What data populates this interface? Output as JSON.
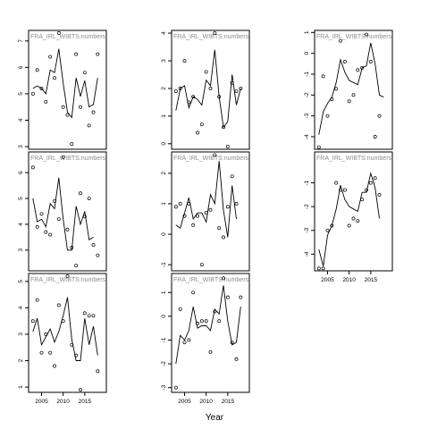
{
  "xlabel": "Year",
  "chart_data": [
    {
      "type": "line",
      "label": "FRA_IRL_WIBTS:numbers",
      "ylim": [
        2.9,
        7.4
      ],
      "yticks": [
        3,
        4,
        5,
        6,
        7
      ],
      "xlim": [
        2002,
        2020
      ],
      "xticks": [],
      "points": [
        [
          2003,
          5.0
        ],
        [
          2004,
          5.9
        ],
        [
          2005,
          5.2
        ],
        [
          2006,
          4.7
        ],
        [
          2007,
          6.4
        ],
        [
          2008,
          5.6
        ],
        [
          2009,
          7.3
        ],
        [
          2010,
          4.5
        ],
        [
          2011,
          4.2
        ],
        [
          2012,
          3.1
        ],
        [
          2013,
          6.5
        ],
        [
          2014,
          4.5
        ],
        [
          2015,
          5.8
        ],
        [
          2016,
          3.8
        ],
        [
          2017,
          4.3
        ],
        [
          2018,
          6.5
        ]
      ],
      "line": [
        [
          2003,
          5.2
        ],
        [
          2004,
          5.3
        ],
        [
          2005,
          5.2
        ],
        [
          2006,
          5.0
        ],
        [
          2007,
          5.9
        ],
        [
          2008,
          5.8
        ],
        [
          2009,
          6.7
        ],
        [
          2010,
          5.4
        ],
        [
          2011,
          4.3
        ],
        [
          2012,
          4.1
        ],
        [
          2013,
          5.6
        ],
        [
          2014,
          4.9
        ],
        [
          2015,
          5.5
        ],
        [
          2016,
          4.5
        ],
        [
          2017,
          4.6
        ],
        [
          2018,
          5.6
        ]
      ]
    },
    {
      "type": "line",
      "label": "FRA_IRL_WIBTS:numbers",
      "ylim": [
        -0.2,
        4.1
      ],
      "yticks": [
        0,
        1,
        2,
        3,
        4
      ],
      "xlim": [
        2002,
        2020
      ],
      "xticks": [],
      "points": [
        [
          2003,
          1.9
        ],
        [
          2004,
          2.0
        ],
        [
          2005,
          3.0
        ],
        [
          2006,
          1.5
        ],
        [
          2007,
          1.7
        ],
        [
          2008,
          0.4
        ],
        [
          2009,
          0.7
        ],
        [
          2010,
          2.6
        ],
        [
          2011,
          2.0
        ],
        [
          2012,
          4.0
        ],
        [
          2013,
          1.7
        ],
        [
          2014,
          0.6
        ],
        [
          2015,
          -0.1
        ],
        [
          2016,
          2.2
        ],
        [
          2017,
          1.9
        ],
        [
          2018,
          2.0
        ]
      ],
      "line": [
        [
          2003,
          1.2
        ],
        [
          2004,
          2.0
        ],
        [
          2005,
          2.1
        ],
        [
          2006,
          1.3
        ],
        [
          2007,
          1.7
        ],
        [
          2008,
          1.6
        ],
        [
          2009,
          1.4
        ],
        [
          2010,
          2.3
        ],
        [
          2011,
          2.1
        ],
        [
          2012,
          3.4
        ],
        [
          2013,
          1.7
        ],
        [
          2014,
          0.6
        ],
        [
          2015,
          0.8
        ],
        [
          2016,
          2.5
        ],
        [
          2017,
          1.4
        ],
        [
          2018,
          2.0
        ]
      ]
    },
    {
      "type": "line",
      "label": "FRA_IRL_WIBTS:numbers",
      "ylim": [
        -4.6,
        1.1
      ],
      "yticks": [
        -4,
        -3,
        -2,
        -1,
        0,
        1
      ],
      "xlim": [
        2002,
        2020
      ],
      "xticks": [],
      "points": [
        [
          2003,
          -4.5
        ],
        [
          2004,
          -1.1
        ],
        [
          2005,
          -3.0
        ],
        [
          2006,
          -2.2
        ],
        [
          2007,
          -1.7
        ],
        [
          2008,
          0.6
        ],
        [
          2009,
          -0.4
        ],
        [
          2010,
          -2.3
        ],
        [
          2011,
          -2.0
        ],
        [
          2012,
          -0.8
        ],
        [
          2013,
          -0.7
        ],
        [
          2014,
          0.9
        ],
        [
          2015,
          -0.4
        ],
        [
          2016,
          -4.0
        ],
        [
          2017,
          -3.0
        ]
      ],
      "line": [
        [
          2003,
          -3.9
        ],
        [
          2004,
          -2.8
        ],
        [
          2005,
          -2.4
        ],
        [
          2006,
          -2.1
        ],
        [
          2007,
          -1.4
        ],
        [
          2008,
          -0.3
        ],
        [
          2009,
          -0.9
        ],
        [
          2010,
          -1.3
        ],
        [
          2011,
          -1.4
        ],
        [
          2012,
          -1.5
        ],
        [
          2013,
          -0.7
        ],
        [
          2014,
          -0.6
        ],
        [
          2015,
          0.5
        ],
        [
          2016,
          -0.5
        ],
        [
          2017,
          -2.0
        ],
        [
          2018,
          -2.1
        ]
      ]
    },
    {
      "type": "line",
      "label": "FRA_IRL_WIBTS:numbers",
      "ylim": [
        2.2,
        6.8
      ],
      "yticks": [
        3,
        4,
        5,
        6
      ],
      "xlim": [
        2002,
        2020
      ],
      "xticks": [],
      "points": [
        [
          2003,
          6.2
        ],
        [
          2004,
          3.9
        ],
        [
          2005,
          4.4
        ],
        [
          2006,
          3.7
        ],
        [
          2007,
          3.6
        ],
        [
          2008,
          4.9
        ],
        [
          2009,
          4.2
        ],
        [
          2010,
          6.6
        ],
        [
          2011,
          3.8
        ],
        [
          2012,
          3.1
        ],
        [
          2013,
          2.4
        ],
        [
          2014,
          5.2
        ],
        [
          2015,
          4.3
        ],
        [
          2016,
          5.0
        ],
        [
          2017,
          3.2
        ],
        [
          2018,
          2.8
        ]
      ],
      "line": [
        [
          2003,
          5.0
        ],
        [
          2004,
          4.1
        ],
        [
          2005,
          4.2
        ],
        [
          2006,
          3.9
        ],
        [
          2007,
          4.8
        ],
        [
          2008,
          4.6
        ],
        [
          2009,
          5.8
        ],
        [
          2010,
          4.2
        ],
        [
          2011,
          3.0
        ],
        [
          2012,
          3.0
        ],
        [
          2013,
          4.7
        ],
        [
          2014,
          4.0
        ],
        [
          2015,
          4.5
        ],
        [
          2016,
          3.4
        ],
        [
          2017,
          3.5
        ]
      ]
    },
    {
      "type": "line",
      "label": "FRA_IRL_WIBTS:numbers",
      "ylim": [
        -1.2,
        2.7
      ],
      "yticks": [
        -1,
        0,
        1,
        2
      ],
      "xlim": [
        2002,
        2020
      ],
      "xticks": [],
      "points": [
        [
          2003,
          0.9
        ],
        [
          2004,
          1.0
        ],
        [
          2005,
          0.6
        ],
        [
          2006,
          1.0
        ],
        [
          2007,
          0.3
        ],
        [
          2008,
          0.6
        ],
        [
          2009,
          -1.0
        ],
        [
          2010,
          0.7
        ],
        [
          2011,
          0.8
        ],
        [
          2012,
          2.6
        ],
        [
          2013,
          0.2
        ],
        [
          2014,
          -0.1
        ],
        [
          2015,
          0.9
        ],
        [
          2016,
          1.9
        ],
        [
          2017,
          1.0
        ]
      ],
      "line": [
        [
          2003,
          0.3
        ],
        [
          2004,
          0.2
        ],
        [
          2005,
          0.7
        ],
        [
          2006,
          1.2
        ],
        [
          2007,
          0.5
        ],
        [
          2008,
          0.7
        ],
        [
          2009,
          0.7
        ],
        [
          2010,
          0.4
        ],
        [
          2011,
          1.3
        ],
        [
          2012,
          1.0
        ],
        [
          2013,
          2.4
        ],
        [
          2014,
          0.8
        ],
        [
          2015,
          -0.1
        ],
        [
          2016,
          1.6
        ],
        [
          2017,
          0.5
        ]
      ]
    },
    {
      "type": "line",
      "label": "FRA_IRL_WIBTS:numbers",
      "ylim": [
        -4.7,
        0.3
      ],
      "yticks": [
        -4,
        -3,
        -2,
        -1
      ],
      "xlim": [
        2002,
        2020
      ],
      "xticks": [
        2005,
        2010,
        2015
      ],
      "points": [
        [
          2003,
          -4.6
        ],
        [
          2004,
          -4.6
        ],
        [
          2005,
          -3.0
        ],
        [
          2006,
          -2.8
        ],
        [
          2007,
          -1.0
        ],
        [
          2008,
          -1.3
        ],
        [
          2009,
          -1.3
        ],
        [
          2010,
          -2.8
        ],
        [
          2011,
          -2.5
        ],
        [
          2012,
          -2.6
        ],
        [
          2013,
          -1.7
        ],
        [
          2014,
          -1.3
        ],
        [
          2015,
          -1.0
        ],
        [
          2016,
          -0.8
        ],
        [
          2017,
          -1.5
        ]
      ],
      "line": [
        [
          2003,
          -3.8
        ],
        [
          2004,
          -4.5
        ],
        [
          2005,
          -3.2
        ],
        [
          2006,
          -2.8
        ],
        [
          2007,
          -2.1
        ],
        [
          2008,
          -1.1
        ],
        [
          2009,
          -1.7
        ],
        [
          2010,
          -2.0
        ],
        [
          2011,
          -2.1
        ],
        [
          2012,
          -2.2
        ],
        [
          2013,
          -1.4
        ],
        [
          2014,
          -1.4
        ],
        [
          2015,
          -0.6
        ],
        [
          2016,
          -1.2
        ],
        [
          2017,
          -2.5
        ]
      ]
    },
    {
      "type": "line",
      "label": "FRA_IRL_WIBTS:numbers",
      "ylim": [
        0.8,
        5.3
      ],
      "yticks": [
        1,
        2,
        3,
        4,
        5
      ],
      "xlim": [
        2002,
        2020
      ],
      "xticks": [
        2005,
        2010,
        2015
      ],
      "points": [
        [
          2003,
          3.5
        ],
        [
          2004,
          4.3
        ],
        [
          2005,
          2.3
        ],
        [
          2006,
          3.0
        ],
        [
          2007,
          2.3
        ],
        [
          2008,
          1.8
        ],
        [
          2009,
          4.1
        ],
        [
          2010,
          3.5
        ],
        [
          2011,
          5.2
        ],
        [
          2012,
          2.6
        ],
        [
          2013,
          2.2
        ],
        [
          2014,
          0.9
        ],
        [
          2015,
          3.8
        ],
        [
          2016,
          3.7
        ],
        [
          2017,
          3.7
        ],
        [
          2018,
          1.6
        ]
      ],
      "line": [
        [
          2003,
          3.1
        ],
        [
          2004,
          3.6
        ],
        [
          2005,
          2.6
        ],
        [
          2006,
          2.9
        ],
        [
          2007,
          3.2
        ],
        [
          2008,
          2.7
        ],
        [
          2009,
          3.1
        ],
        [
          2010,
          3.7
        ],
        [
          2011,
          4.4
        ],
        [
          2012,
          2.8
        ],
        [
          2013,
          2.0
        ],
        [
          2014,
          2.0
        ],
        [
          2015,
          3.6
        ],
        [
          2016,
          2.6
        ],
        [
          2017,
          3.3
        ],
        [
          2018,
          2.2
        ]
      ]
    },
    {
      "type": "line",
      "label": "FRA_IRL_WIBTS:numbers",
      "ylim": [
        -3.2,
        1.8
      ],
      "yticks": [
        -3,
        -2,
        -1,
        0,
        1
      ],
      "xlim": [
        2002,
        2020
      ],
      "xticks": [
        2005,
        2010,
        2015
      ],
      "points": [
        [
          2003,
          -3.0
        ],
        [
          2004,
          0.3
        ],
        [
          2005,
          -1.1
        ],
        [
          2006,
          -1.0
        ],
        [
          2007,
          1.0
        ],
        [
          2008,
          -0.3
        ],
        [
          2009,
          -0.2
        ],
        [
          2010,
          -0.2
        ],
        [
          2011,
          -1.5
        ],
        [
          2012,
          0.2
        ],
        [
          2013,
          -0.2
        ],
        [
          2014,
          1.6
        ],
        [
          2015,
          0.8
        ],
        [
          2016,
          -1.1
        ],
        [
          2017,
          -1.8
        ],
        [
          2018,
          0.8
        ]
      ],
      "line": [
        [
          2003,
          -2.0
        ],
        [
          2004,
          -0.8
        ],
        [
          2005,
          -1.0
        ],
        [
          2006,
          -0.6
        ],
        [
          2007,
          0.4
        ],
        [
          2008,
          -0.5
        ],
        [
          2009,
          -0.4
        ],
        [
          2010,
          -0.4
        ],
        [
          2011,
          -0.6
        ],
        [
          2012,
          0.3
        ],
        [
          2013,
          0.1
        ],
        [
          2014,
          1.3
        ],
        [
          2015,
          -0.2
        ],
        [
          2016,
          -1.2
        ],
        [
          2017,
          -1.1
        ],
        [
          2018,
          0.4
        ]
      ]
    }
  ]
}
